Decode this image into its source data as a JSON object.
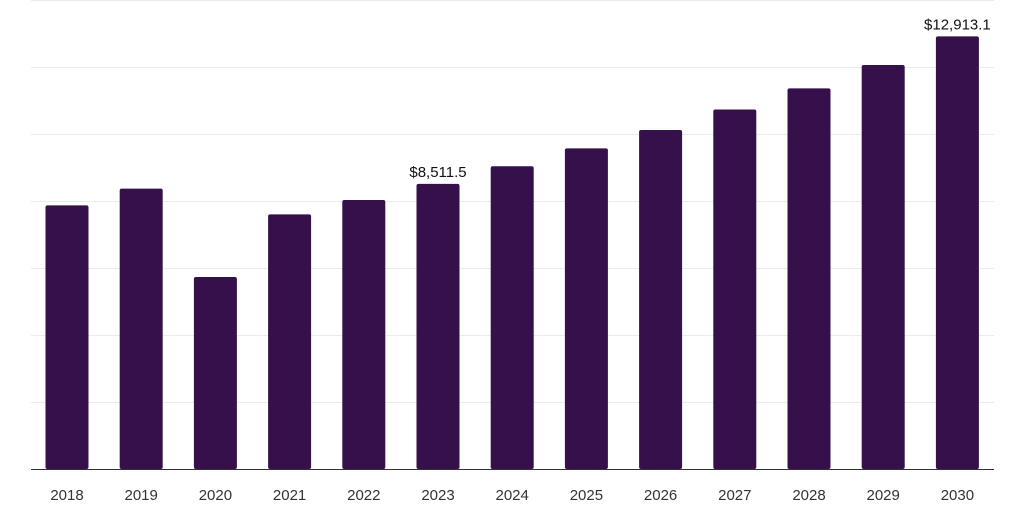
{
  "colors": {
    "bar": "#35104a",
    "grid": "#ebebeb",
    "axis": "#333333",
    "text": "#333333"
  },
  "chart_data": {
    "type": "bar",
    "categories": [
      "2018",
      "2019",
      "2020",
      "2021",
      "2022",
      "2023",
      "2024",
      "2025",
      "2026",
      "2027",
      "2028",
      "2029",
      "2030"
    ],
    "values": [
      7870,
      8370,
      5730,
      7600,
      8030,
      8511.5,
      9040,
      9570,
      10120,
      10730,
      11360,
      12060,
      12913.1
    ],
    "data_labels": [
      {
        "category": "2023",
        "text": "$8,511.5"
      },
      {
        "category": "2030",
        "text": "$12,913.1"
      }
    ],
    "title": "",
    "xlabel": "",
    "ylabel": "",
    "ylim": [
      0,
      14000
    ],
    "grid": true,
    "grid_step": 2000
  }
}
